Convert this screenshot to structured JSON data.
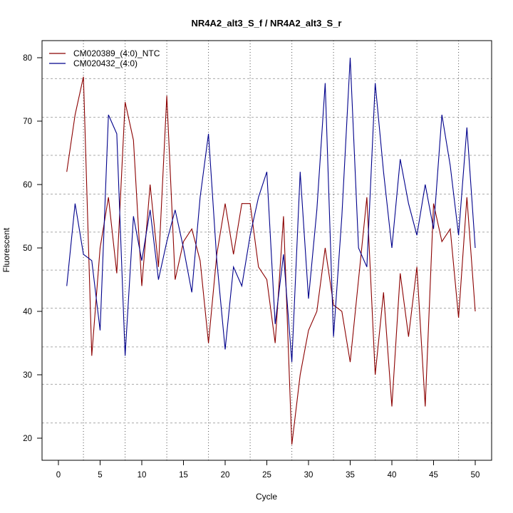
{
  "chart_data": {
    "type": "line",
    "title": "NR4A2_alt3_S_f / NR4A2_alt3_S_r",
    "xlabel": "Cycle",
    "ylabel": "Fluorescent",
    "xlim": [
      0,
      50
    ],
    "ylim": [
      20,
      80
    ],
    "x_ticks": [
      0,
      5,
      10,
      15,
      20,
      25,
      30,
      35,
      40,
      45,
      50
    ],
    "y_ticks": [
      20,
      30,
      40,
      50,
      60,
      70,
      80
    ],
    "grid": true,
    "vertical_gridlines": [
      3,
      8,
      13,
      18,
      23,
      28,
      33,
      38,
      43,
      48
    ],
    "horizontal_gridlines": [
      22.4,
      28.5,
      34.4,
      40.5,
      46.5,
      52.5,
      58.5,
      64.6,
      70.6,
      76.7
    ],
    "legend_position": "top-left",
    "x": [
      1,
      2,
      3,
      4,
      5,
      6,
      7,
      8,
      9,
      10,
      11,
      12,
      13,
      14,
      15,
      16,
      17,
      18,
      19,
      20,
      21,
      22,
      23,
      24,
      25,
      26,
      27,
      28,
      29,
      30,
      31,
      32,
      33,
      34,
      35,
      36,
      37,
      38,
      39,
      40,
      41,
      42,
      43,
      44,
      45,
      46,
      47,
      48,
      49,
      50
    ],
    "series": [
      {
        "name": "CM020389_(4:0)_NTC",
        "color": "#8b0000",
        "values": [
          62,
          71,
          77,
          33,
          50,
          58,
          46,
          73,
          67,
          44,
          60,
          47,
          74,
          45,
          51,
          53,
          48,
          35,
          49,
          57,
          49,
          57,
          57,
          47,
          45,
          35,
          55,
          19,
          30,
          37,
          40,
          50,
          41,
          40,
          32,
          45,
          58,
          30,
          43,
          25,
          46,
          36,
          47,
          25,
          57,
          51,
          53,
          39,
          58,
          40
        ]
      },
      {
        "name": "CM020432_(4:0)",
        "color": "#00008b",
        "values": [
          44,
          57,
          49,
          48,
          37,
          71,
          68,
          33,
          55,
          48,
          56,
          45,
          51,
          56,
          50,
          43,
          58,
          68,
          48,
          34,
          47,
          44,
          52,
          58,
          62,
          38,
          49,
          32,
          62,
          42,
          56,
          76,
          36,
          55,
          80,
          50,
          47,
          76,
          62,
          50,
          64,
          57,
          52,
          60,
          53,
          71,
          63,
          52,
          69,
          50
        ]
      }
    ]
  }
}
